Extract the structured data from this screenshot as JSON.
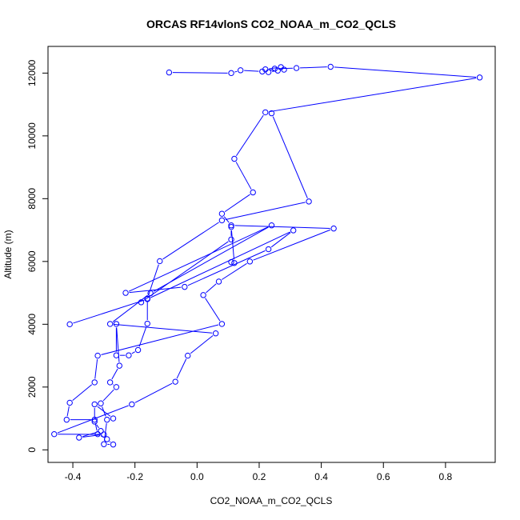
{
  "chart_data": {
    "type": "line",
    "title": "ORCAS RF14vlonS CO2_NOAA_m_CO2_QCLS",
    "xlabel": "CO2_NOAA_m_CO2_QCLS",
    "ylabel": "Altitude (m)",
    "xlim": [
      -0.48,
      0.96
    ],
    "ylim": [
      -400,
      12850
    ],
    "xticks": [
      -0.4,
      -0.2,
      0.0,
      0.2,
      0.4,
      0.6,
      0.8
    ],
    "xtick_labels": [
      "-0.4",
      "-0.2",
      "0.0",
      "0.2",
      "0.4",
      "0.6",
      "0.8"
    ],
    "yticks": [
      0,
      2000,
      4000,
      6000,
      8000,
      10000,
      12000
    ],
    "ytick_labels": [
      "0",
      "2000",
      "4000",
      "6000",
      "8000",
      "10000",
      "12000"
    ],
    "grid": false,
    "legend": "none",
    "color": "#0000ff",
    "series": [
      {
        "points": [
          [
            -0.09,
            12020
          ],
          [
            0.11,
            12000
          ],
          [
            0.14,
            12090
          ],
          [
            0.21,
            12050
          ],
          [
            0.23,
            12030
          ],
          [
            0.26,
            12080
          ],
          [
            0.22,
            12120
          ],
          [
            0.27,
            12190
          ],
          [
            0.28,
            12110
          ],
          [
            0.25,
            12140
          ],
          [
            0.32,
            12160
          ],
          [
            0.43,
            12200
          ],
          [
            0.91,
            11860
          ],
          [
            0.22,
            10750
          ],
          [
            0.12,
            9270
          ],
          [
            0.18,
            8200
          ],
          [
            0.08,
            7520
          ],
          [
            0.11,
            7150
          ],
          [
            0.44,
            7050
          ],
          [
            0.17,
            6000
          ],
          [
            0.07,
            5360
          ],
          [
            0.02,
            4930
          ],
          [
            0.08,
            4010
          ],
          [
            -0.32,
            3000
          ],
          [
            -0.33,
            2150
          ],
          [
            -0.41,
            1500
          ],
          [
            -0.42,
            960
          ],
          [
            -0.33,
            960
          ],
          [
            -0.32,
            500
          ],
          [
            -0.29,
            340
          ],
          [
            -0.27,
            170
          ],
          [
            -0.3,
            180
          ],
          [
            -0.29,
            960
          ],
          [
            -0.31,
            1480
          ],
          [
            -0.26,
            2000
          ],
          [
            -0.28,
            2150
          ],
          [
            -0.25,
            2680
          ],
          [
            -0.26,
            4010
          ],
          [
            -0.26,
            3010
          ],
          [
            -0.22,
            3010
          ],
          [
            -0.19,
            3180
          ],
          [
            -0.16,
            4020
          ],
          [
            -0.16,
            4820
          ],
          [
            -0.12,
            6010
          ],
          [
            0.08,
            7310
          ],
          [
            0.36,
            7910
          ],
          [
            0.24,
            10720
          ]
        ]
      },
      {
        "points": [
          [
            -0.41,
            4000
          ],
          [
            -0.16,
            4800
          ],
          [
            0.31,
            6990
          ],
          [
            0.23,
            6390
          ],
          [
            -0.04,
            5190
          ],
          [
            -0.23,
            5000
          ],
          [
            0.24,
            7150
          ],
          [
            -0.15,
            4990
          ],
          [
            -0.28,
            4010
          ],
          [
            0.06,
            3710
          ],
          [
            -0.03,
            3000
          ],
          [
            -0.07,
            2170
          ],
          [
            -0.21,
            1450
          ],
          [
            -0.46,
            500
          ],
          [
            -0.3,
            490
          ],
          [
            -0.38,
            390
          ],
          [
            -0.31,
            600
          ],
          [
            -0.33,
            900
          ],
          [
            -0.33,
            1450
          ],
          [
            -0.27,
            1000
          ]
        ]
      },
      {
        "points": [
          [
            -0.18,
            4700
          ],
          [
            0.11,
            6700
          ],
          [
            0.11,
            7100
          ],
          [
            0.12,
            5950
          ],
          [
            0.11,
            5980
          ]
        ]
      }
    ]
  }
}
